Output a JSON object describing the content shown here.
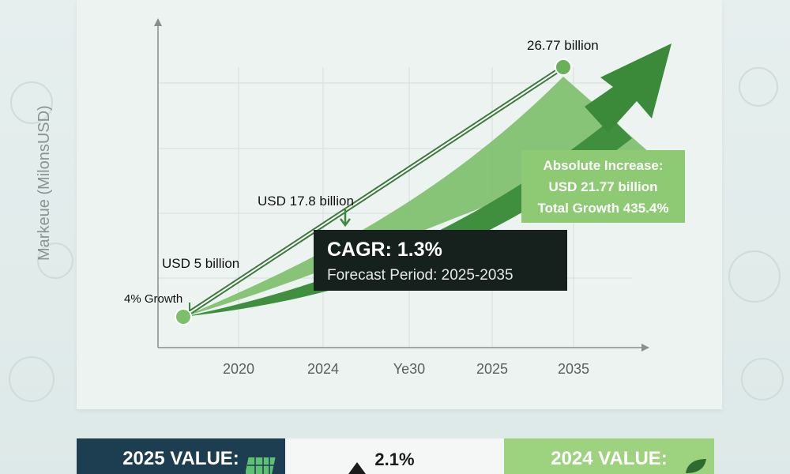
{
  "chart_data": {
    "type": "line",
    "ylabel": "Markeue (MilonsUSD)",
    "x_ticks": [
      "2020",
      "2024",
      "Ye30",
      "2025",
      "2035"
    ],
    "series": [
      {
        "points": [
          {
            "x": "2020",
            "y": 5
          },
          {
            "x": "2035",
            "y": 26.77
          }
        ]
      }
    ],
    "annotations": {
      "start_value": "USD 5 billion",
      "start_growth": "4% Growth",
      "mid_value": "USD 17.8 billion",
      "end_value": "26.77 billion",
      "cagr_title": "CAGR: 1.3%",
      "forecast": "Forecast Period: 2025-2035",
      "increase_line1": "Absolute Increase:",
      "increase_line2": "USD 21.77 billion",
      "increase_line3": "Total Growth 435.4%"
    },
    "grid": true,
    "colors": {
      "primary": "#3f8f3f",
      "light": "#7cbf6a",
      "dark": "#16211e"
    }
  },
  "bottom": {
    "left_label": "2025 VALUE:",
    "mid_label": "2.1%",
    "right_label": "2024 VALUE:"
  }
}
